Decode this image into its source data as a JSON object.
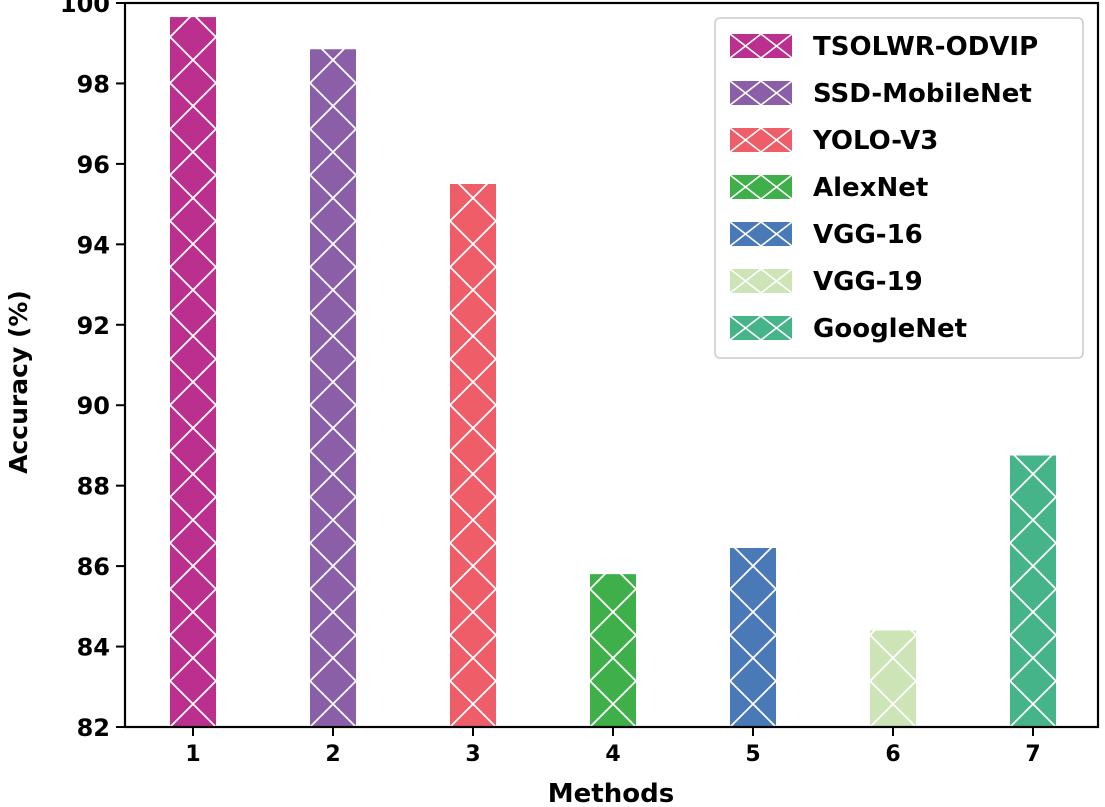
{
  "chart_data": {
    "type": "bar",
    "categories": [
      "1",
      "2",
      "3",
      "4",
      "5",
      "6",
      "7"
    ],
    "series": [
      {
        "name": "TSOLWR-ODVIP",
        "values": [
          99.65,
          null,
          null,
          null,
          null,
          null,
          null
        ],
        "color": "#bb2f8e"
      },
      {
        "name": "SSD-MobileNet",
        "values": [
          null,
          98.85,
          null,
          null,
          null,
          null,
          null
        ],
        "color": "#8b5ea8"
      },
      {
        "name": "YOLO-V3",
        "values": [
          null,
          null,
          95.5,
          null,
          null,
          null,
          null
        ],
        "color": "#ef5e68"
      },
      {
        "name": "AlexNet",
        "values": [
          null,
          null,
          null,
          85.8,
          null,
          null,
          null
        ],
        "color": "#3faf4a"
      },
      {
        "name": "VGG-16",
        "values": [
          null,
          null,
          null,
          null,
          86.45,
          null,
          null
        ],
        "color": "#4a79b7"
      },
      {
        "name": "VGG-19",
        "values": [
          null,
          null,
          null,
          null,
          null,
          84.4,
          null
        ],
        "color": "#cde4b6"
      },
      {
        "name": "GoogleNet",
        "values": [
          null,
          null,
          null,
          null,
          null,
          null,
          88.75
        ],
        "color": "#46b489"
      }
    ],
    "xlabel": "Methods",
    "ylabel": "Accuracy (%)",
    "ylim": [
      82,
      100
    ],
    "yticks": [
      "82",
      "84",
      "86",
      "88",
      "90",
      "92",
      "94",
      "96",
      "98",
      "100"
    ],
    "grid": false,
    "legend_position": "top-right",
    "hatch": "cross-hatch"
  }
}
